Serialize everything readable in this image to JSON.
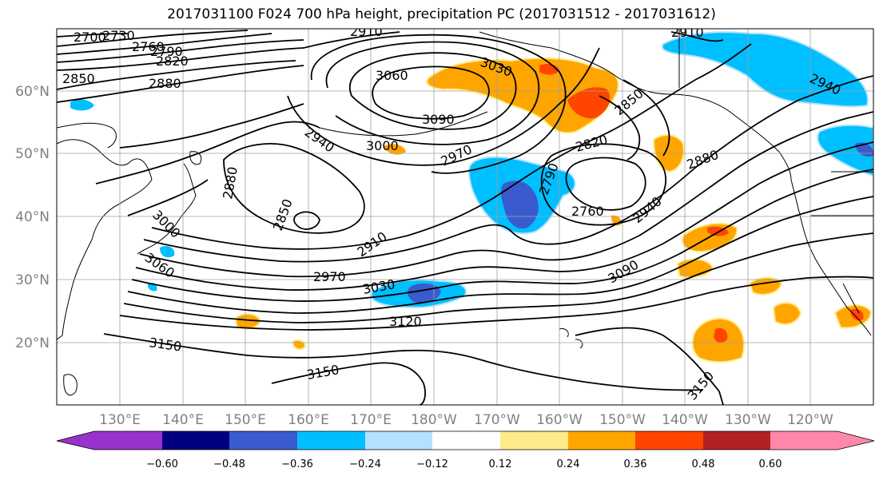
{
  "title": "2017031100 F024 700 hPa height, precipitation PC (2017031512 - 2017031612)",
  "lat_labels": [
    "60°N",
    "50°N",
    "40°N",
    "30°N",
    "20°N"
  ],
  "lon_labels": [
    "130°E",
    "140°E",
    "150°E",
    "160°E",
    "170°E",
    "180°W",
    "170°W",
    "160°W",
    "150°W",
    "140°W",
    "130°W",
    "120°W"
  ],
  "contour_labels": [
    "2700",
    "2730",
    "2760",
    "2790",
    "2820",
    "2850",
    "2880",
    "2910",
    "2910",
    "3030",
    "3060",
    "3090",
    "2940",
    "3000",
    "2970",
    "2850",
    "2820",
    "2880",
    "2940",
    "2790",
    "2760",
    "2880",
    "2850",
    "3000",
    "3060",
    "2910",
    "2970",
    "3030",
    "3090",
    "3120",
    "3150",
    "3150",
    "3150",
    "2940"
  ],
  "colorbar": {
    "tick_labels": [
      "−0.60",
      "−0.48",
      "−0.36",
      "−0.24",
      "−0.12",
      "0.12",
      "0.24",
      "0.36",
      "0.48",
      "0.60"
    ],
    "colors": {
      "under": "#9932CC",
      "b1": "#000080",
      "b2": "#3A5BCD",
      "b3": "#00BFFF",
      "b4": "#B2E2FF",
      "b5": "#FFFFFF",
      "b6": "#FFFFFF",
      "b7": "#FFEA8A",
      "b8": "#FFA500",
      "b9": "#FF4500",
      "b10": "#B22222",
      "over": "#FF88AA"
    }
  }
}
